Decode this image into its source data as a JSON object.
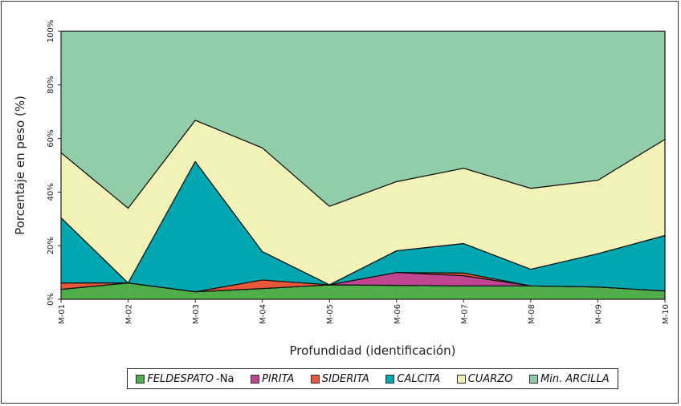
{
  "chart_data": {
    "type": "area",
    "stacked": true,
    "xlabel": "Profundidad (identificación)",
    "ylabel": "Porcentaje en peso (%)",
    "ylim": [
      0,
      100
    ],
    "yticks": [
      "0%",
      "20%",
      "40%",
      "60%",
      "80%",
      "100%"
    ],
    "categories": [
      "M-01",
      "M-02",
      "M-03",
      "M-04",
      "M-05",
      "M-06",
      "M-07",
      "M-08",
      "M-09",
      "M-10"
    ],
    "legend_position": "bottom",
    "series": [
      {
        "name": "FELDESPATO",
        "suffix": "-Na",
        "color": "#4fae4a",
        "values": [
          3.7,
          6.1,
          2.8,
          4.0,
          5.4,
          5.2,
          5.0,
          5.0,
          4.6,
          3.1
        ]
      },
      {
        "name": "PIRITA",
        "color": "#bf4590",
        "values": [
          0,
          0,
          0,
          0,
          0,
          4.8,
          3.8,
          0,
          0,
          0
        ]
      },
      {
        "name": "SIDERITA",
        "color": "#e8573a",
        "values": [
          2.4,
          0,
          0,
          3.2,
          0,
          0,
          1.0,
          0,
          0,
          0
        ]
      },
      {
        "name": "CALCITA",
        "color": "#00a6b0",
        "values": [
          24.3,
          0,
          48.6,
          10.6,
          0,
          8.1,
          11.0,
          6.2,
          12.4,
          20.7
        ]
      },
      {
        "name": "CUARZO",
        "color": "#f2f2b8",
        "values": [
          24.3,
          27.9,
          15.4,
          38.7,
          29.3,
          25.8,
          28.1,
          30.2,
          27.4,
          35.9
        ]
      },
      {
        "name": "Min. ARCILLA",
        "color": "#90cda8",
        "values": [
          45.3,
          66.0,
          33.2,
          43.5,
          65.3,
          56.1,
          51.1,
          58.6,
          55.6,
          40.3
        ]
      }
    ]
  }
}
